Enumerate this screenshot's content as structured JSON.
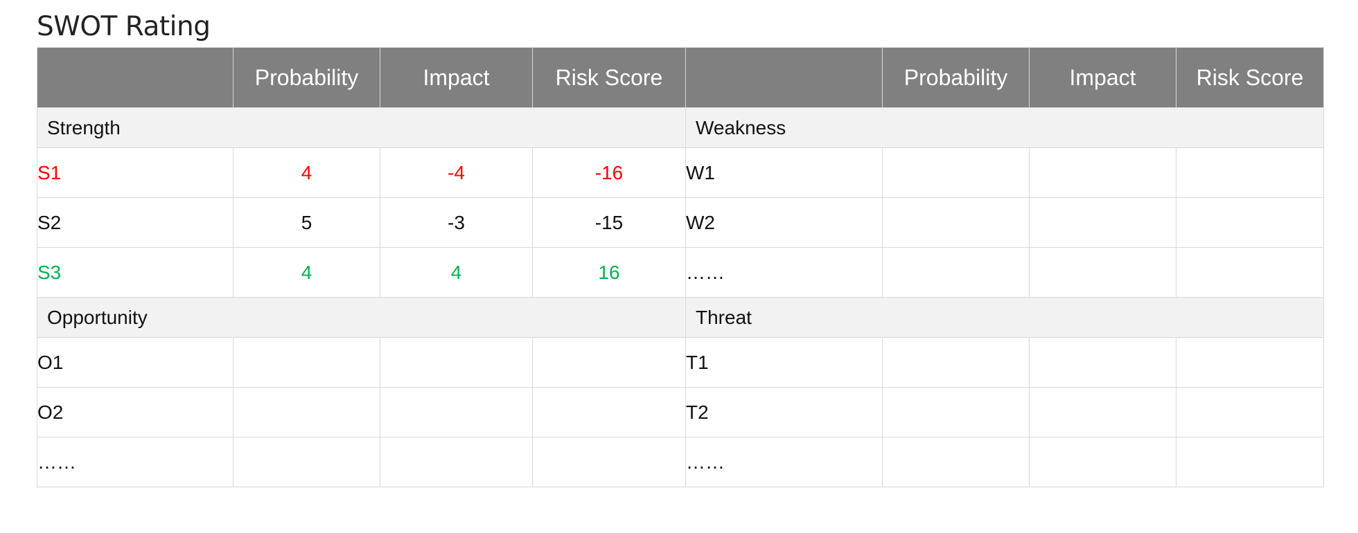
{
  "title": "SWOT Rating",
  "colors": {
    "header_bg": "#808080",
    "section_bg": "#f2f2f2",
    "negative": "#ff0000",
    "positive": "#00b050",
    "neutral": "#111111"
  },
  "table": {
    "header": {
      "left": [
        "",
        "Probability",
        "Impact",
        "Risk Score"
      ],
      "right": [
        "",
        "Probability",
        "Impact",
        "Risk Score"
      ]
    },
    "sections": [
      {
        "left_title": "Strength",
        "right_title": "Weakness",
        "rows": [
          {
            "left": {
              "label": "S1",
              "probability": "4",
              "impact": "-4",
              "risk": "-16",
              "color": "red"
            },
            "right": {
              "label": "W1",
              "probability": "",
              "impact": "",
              "risk": ""
            }
          },
          {
            "left": {
              "label": "S2",
              "probability": "5",
              "impact": "-3",
              "risk": "-15",
              "color": "black"
            },
            "right": {
              "label": "W2",
              "probability": "",
              "impact": "",
              "risk": ""
            }
          },
          {
            "left": {
              "label": "S3",
              "probability": "4",
              "impact": "4",
              "risk": "16",
              "color": "green"
            },
            "right": {
              "label": "……",
              "probability": "",
              "impact": "",
              "risk": ""
            }
          }
        ]
      },
      {
        "left_title": "Opportunity",
        "right_title": "Threat",
        "rows": [
          {
            "left": {
              "label": "O1",
              "probability": "",
              "impact": "",
              "risk": ""
            },
            "right": {
              "label": "T1",
              "probability": "",
              "impact": "",
              "risk": ""
            }
          },
          {
            "left": {
              "label": "O2",
              "probability": "",
              "impact": "",
              "risk": ""
            },
            "right": {
              "label": "T2",
              "probability": "",
              "impact": "",
              "risk": ""
            }
          },
          {
            "left": {
              "label": "……",
              "probability": "",
              "impact": "",
              "risk": ""
            },
            "right": {
              "label": "……",
              "probability": "",
              "impact": "",
              "risk": ""
            }
          }
        ]
      }
    ]
  }
}
